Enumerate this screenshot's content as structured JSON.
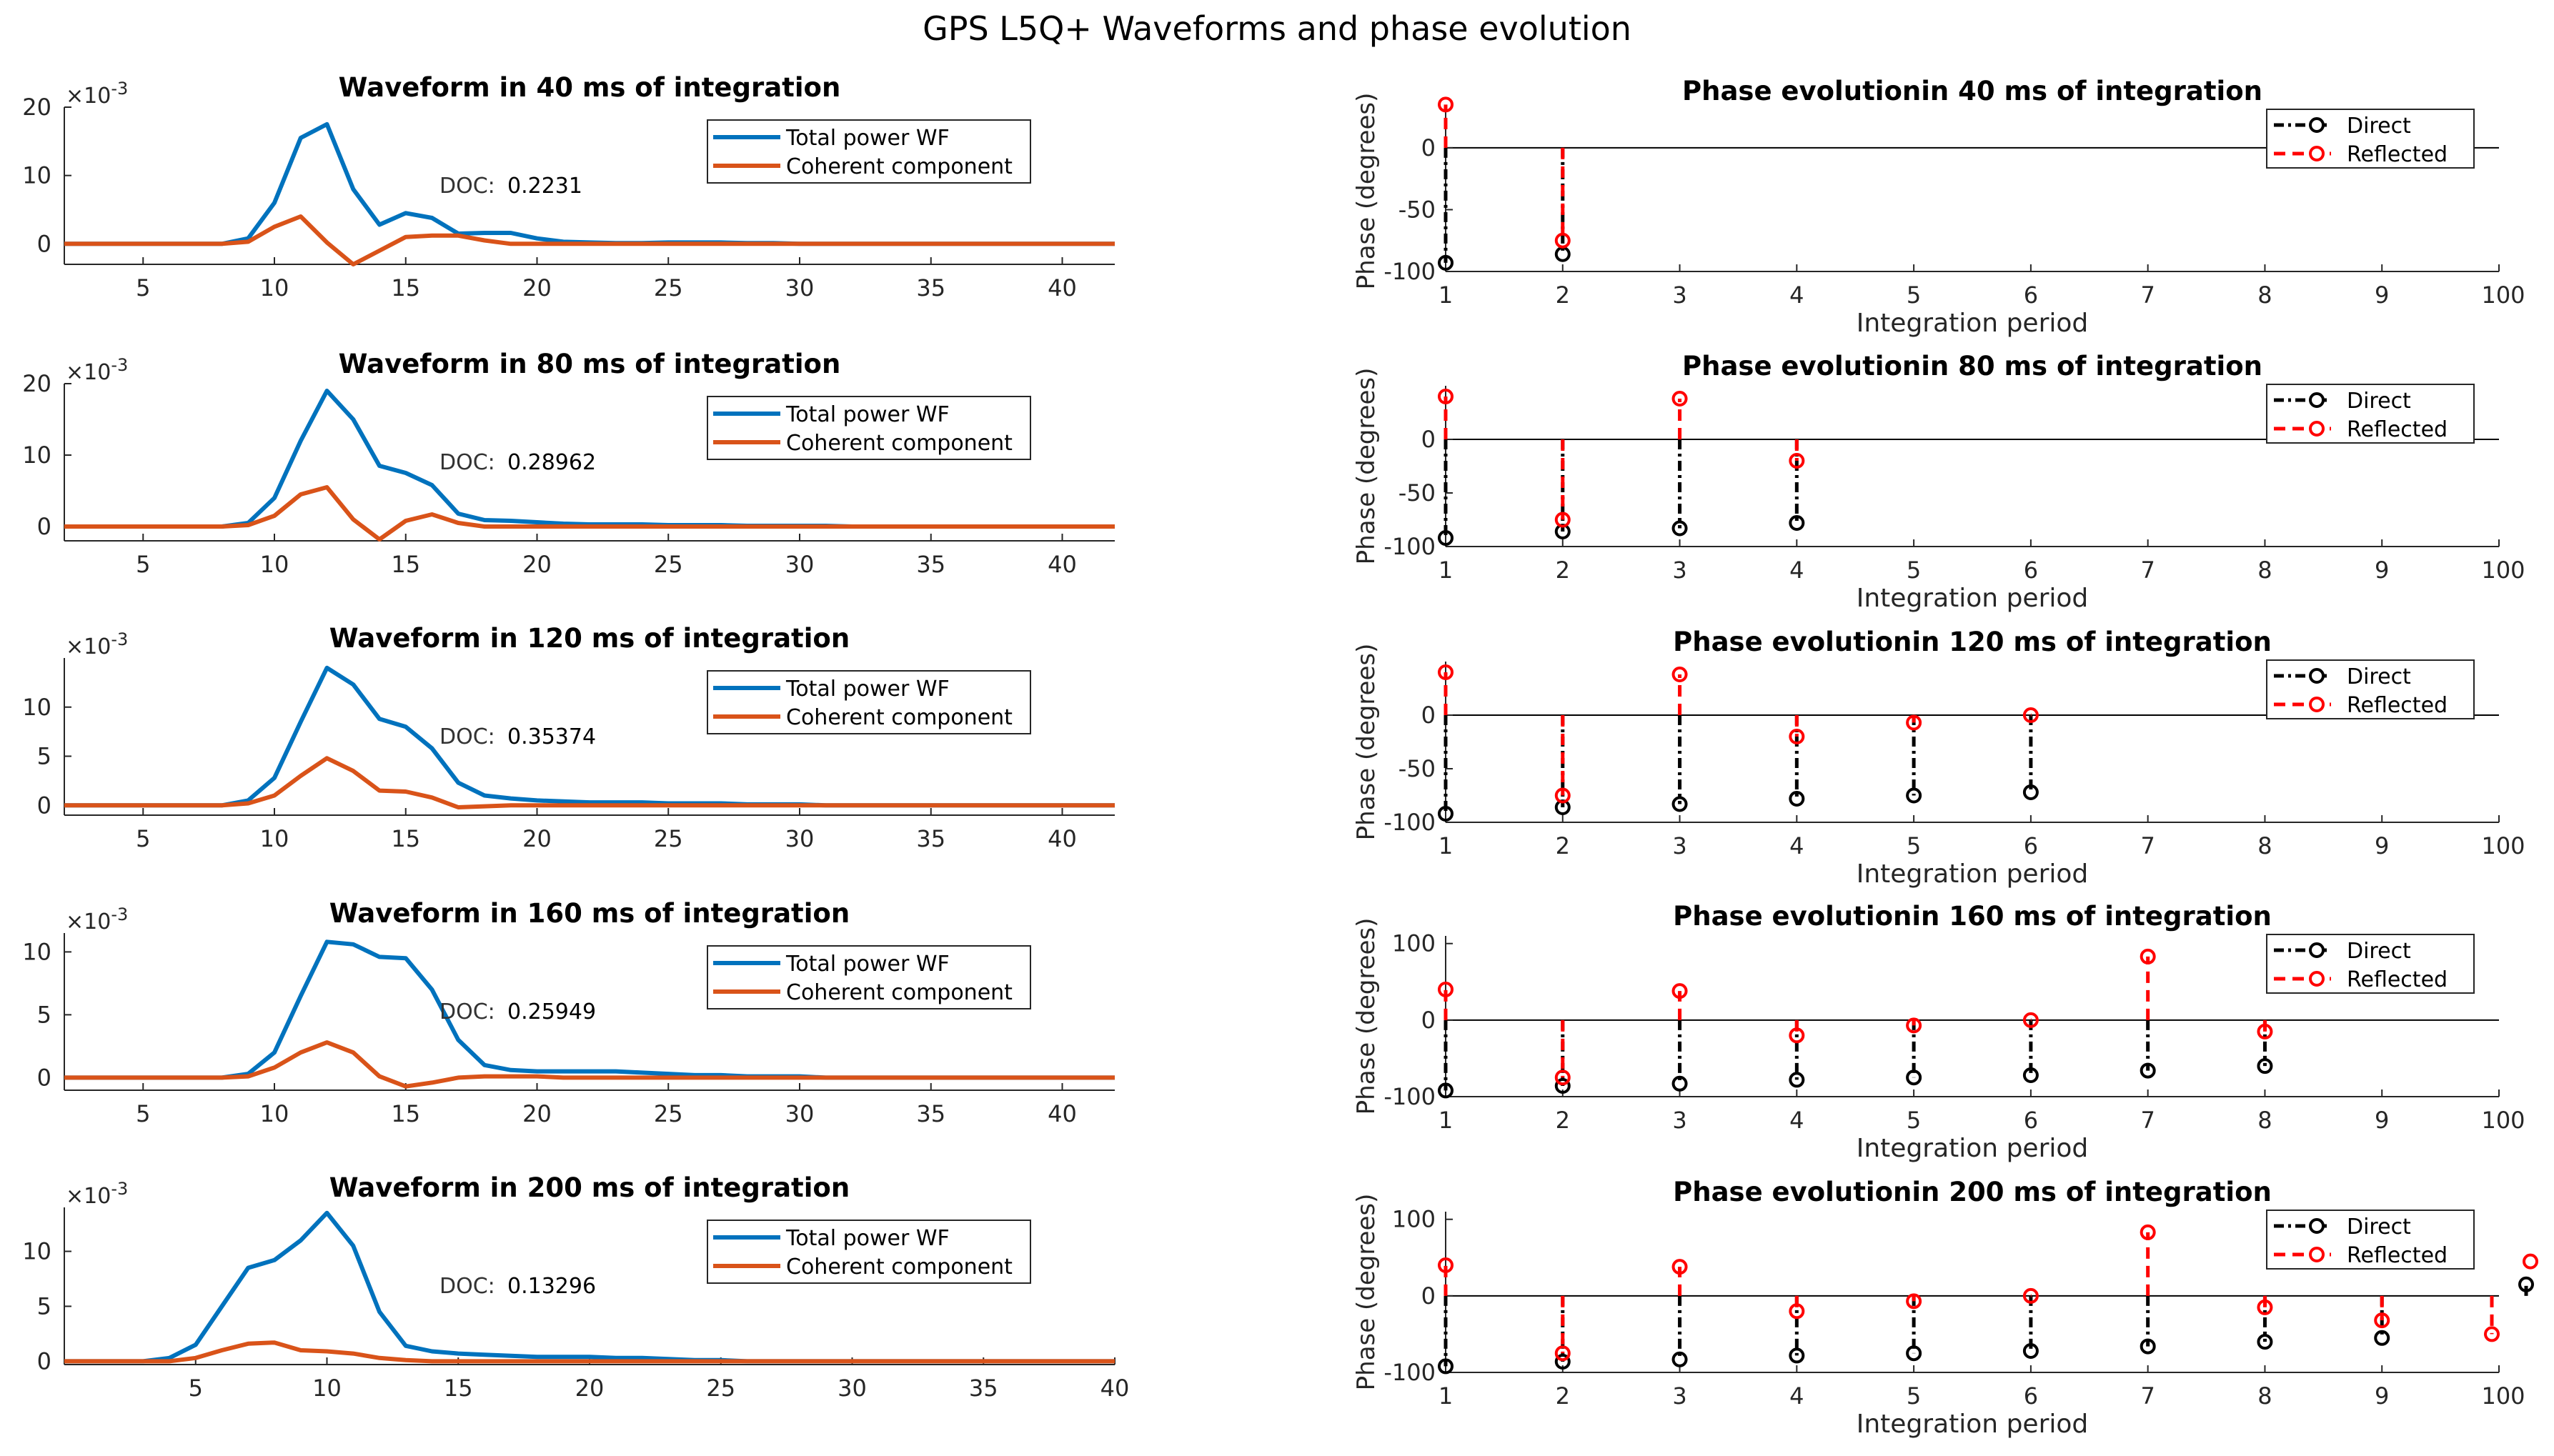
{
  "figure_title": "GPS L5Q+ Waveforms and phase evolution",
  "colors": {
    "total": "#0072BD",
    "coherent": "#D95319",
    "direct": "#000000",
    "reflected": "#FF0000",
    "axis": "#262626"
  },
  "chart_data": [
    {
      "type": "line",
      "panel": "waveform",
      "title": "Waveform in 40 ms of integration",
      "exponent_label": "×10^-3",
      "exp_base": "×10",
      "exp_power": "-3",
      "xlim": [
        2,
        42
      ],
      "ylim": [
        -3,
        20
      ],
      "xticks": [
        5,
        10,
        15,
        20,
        25,
        30,
        35,
        40
      ],
      "yticks": [
        0,
        10,
        20
      ],
      "doc_label": "DOC:",
      "doc_value": "0.2231",
      "legend": [
        "Total power WF",
        "Coherent component"
      ],
      "x": [
        2,
        3,
        4,
        5,
        6,
        7,
        8,
        9,
        10,
        11,
        12,
        13,
        14,
        15,
        16,
        17,
        18,
        19,
        20,
        21,
        22,
        23,
        24,
        25,
        26,
        27,
        28,
        29,
        30,
        31,
        32,
        33,
        34,
        35,
        36,
        37,
        38,
        39,
        40,
        41,
        42
      ],
      "series": [
        {
          "name": "Total power WF",
          "values": [
            0,
            0,
            0,
            0,
            0,
            0,
            0,
            0.8,
            6,
            15.5,
            17.5,
            8,
            2.8,
            4.5,
            3.8,
            1.5,
            1.6,
            1.6,
            0.8,
            0.3,
            0.2,
            0.1,
            0.1,
            0.2,
            0.2,
            0.2,
            0.1,
            0.1,
            0,
            0,
            0,
            0,
            0,
            0,
            0,
            0,
            0,
            0,
            0,
            0,
            0
          ]
        },
        {
          "name": "Coherent component",
          "values": [
            0,
            0,
            0,
            0,
            0,
            0,
            0,
            0.3,
            2.5,
            4,
            0.2,
            -3,
            -1,
            1,
            1.2,
            1.2,
            0.5,
            0,
            0,
            0,
            0,
            0,
            0,
            0,
            0,
            0,
            0,
            0,
            0,
            0,
            0,
            0,
            0,
            0,
            0,
            0,
            0,
            0,
            0,
            0,
            0
          ]
        }
      ]
    },
    {
      "type": "line",
      "panel": "waveform",
      "title": "Waveform in 80 ms of integration",
      "exponent_label": "×10^-3",
      "exp_base": "×10",
      "exp_power": "-3",
      "xlim": [
        2,
        42
      ],
      "ylim": [
        -2,
        20
      ],
      "xticks": [
        5,
        10,
        15,
        20,
        25,
        30,
        35,
        40
      ],
      "yticks": [
        0,
        10,
        20
      ],
      "doc_label": "DOC:",
      "doc_value": "0.28962",
      "legend": [
        "Total power WF",
        "Coherent component"
      ],
      "x": [
        2,
        3,
        4,
        5,
        6,
        7,
        8,
        9,
        10,
        11,
        12,
        13,
        14,
        15,
        16,
        17,
        18,
        19,
        20,
        21,
        22,
        23,
        24,
        25,
        26,
        27,
        28,
        29,
        30,
        31,
        32,
        33,
        34,
        35,
        36,
        37,
        38,
        39,
        40,
        41,
        42
      ],
      "series": [
        {
          "name": "Total power WF",
          "values": [
            0,
            0,
            0,
            0,
            0,
            0,
            0,
            0.5,
            4,
            12,
            19,
            15,
            8.5,
            7.5,
            5.8,
            1.8,
            0.9,
            0.8,
            0.6,
            0.4,
            0.3,
            0.3,
            0.3,
            0.2,
            0.2,
            0.2,
            0.1,
            0.1,
            0.1,
            0.1,
            0,
            0,
            0,
            0,
            0,
            0,
            0,
            0,
            0,
            0,
            0
          ]
        },
        {
          "name": "Coherent component",
          "values": [
            0,
            0,
            0,
            0,
            0,
            0,
            0,
            0.2,
            1.5,
            4.5,
            5.5,
            1,
            -1.8,
            0.8,
            1.7,
            0.5,
            0,
            0,
            0,
            0,
            0,
            0,
            0,
            0,
            0,
            0,
            0,
            0,
            0,
            0,
            0,
            0,
            0,
            0,
            0,
            0,
            0,
            0,
            0,
            0,
            0
          ]
        }
      ]
    },
    {
      "type": "line",
      "panel": "waveform",
      "title": "Waveform in 120 ms of integration",
      "exponent_label": "×10^-3",
      "exp_base": "×10",
      "exp_power": "-3",
      "xlim": [
        2,
        42
      ],
      "ylim": [
        -1,
        15
      ],
      "xticks": [
        5,
        10,
        15,
        20,
        25,
        30,
        35,
        40
      ],
      "yticks": [
        0,
        5,
        10
      ],
      "doc_label": "DOC:",
      "doc_value": "0.35374",
      "legend": [
        "Total power WF",
        "Coherent component"
      ],
      "x": [
        2,
        3,
        4,
        5,
        6,
        7,
        8,
        9,
        10,
        11,
        12,
        13,
        14,
        15,
        16,
        17,
        18,
        19,
        20,
        21,
        22,
        23,
        24,
        25,
        26,
        27,
        28,
        29,
        30,
        31,
        32,
        33,
        34,
        35,
        36,
        37,
        38,
        39,
        40,
        41,
        42
      ],
      "series": [
        {
          "name": "Total power WF",
          "values": [
            0,
            0,
            0,
            0,
            0,
            0,
            0,
            0.5,
            2.8,
            8.5,
            14,
            12.3,
            8.8,
            8,
            5.8,
            2.3,
            1,
            0.7,
            0.5,
            0.4,
            0.3,
            0.3,
            0.3,
            0.2,
            0.2,
            0.2,
            0.1,
            0.1,
            0.1,
            0,
            0,
            0,
            0,
            0,
            0,
            0,
            0,
            0,
            0,
            0,
            0
          ]
        },
        {
          "name": "Coherent component",
          "values": [
            0,
            0,
            0,
            0,
            0,
            0,
            0,
            0.2,
            1,
            3,
            4.8,
            3.5,
            1.5,
            1.4,
            0.8,
            -0.2,
            -0.1,
            0,
            0,
            0,
            0,
            0,
            0,
            0,
            0,
            0,
            0,
            0,
            0,
            0,
            0,
            0,
            0,
            0,
            0,
            0,
            0,
            0,
            0,
            0,
            0
          ]
        }
      ]
    },
    {
      "type": "line",
      "panel": "waveform",
      "title": "Waveform in 160 ms of integration",
      "exponent_label": "×10^-3",
      "exp_base": "×10",
      "exp_power": "-3",
      "xlim": [
        2,
        42
      ],
      "ylim": [
        -1,
        11.5
      ],
      "xticks": [
        5,
        10,
        15,
        20,
        25,
        30,
        35,
        40
      ],
      "yticks": [
        0,
        5,
        10
      ],
      "doc_label": "DOC:",
      "doc_value": "0.25949",
      "legend": [
        "Total power WF",
        "Coherent component"
      ],
      "x": [
        2,
        3,
        4,
        5,
        6,
        7,
        8,
        9,
        10,
        11,
        12,
        13,
        14,
        15,
        16,
        17,
        18,
        19,
        20,
        21,
        22,
        23,
        24,
        25,
        26,
        27,
        28,
        29,
        30,
        31,
        32,
        33,
        34,
        35,
        36,
        37,
        38,
        39,
        40,
        41,
        42
      ],
      "series": [
        {
          "name": "Total power WF",
          "values": [
            0,
            0,
            0,
            0,
            0,
            0,
            0,
            0.3,
            2,
            6.5,
            10.8,
            10.6,
            9.6,
            9.5,
            7,
            3,
            1,
            0.6,
            0.5,
            0.5,
            0.5,
            0.5,
            0.4,
            0.3,
            0.2,
            0.2,
            0.1,
            0.1,
            0.1,
            0,
            0,
            0,
            0,
            0,
            0,
            0,
            0,
            0,
            0,
            0,
            0
          ]
        },
        {
          "name": "Coherent component",
          "values": [
            0,
            0,
            0,
            0,
            0,
            0,
            0,
            0.1,
            0.8,
            2,
            2.8,
            2,
            0.1,
            -0.7,
            -0.4,
            0,
            0.1,
            0.1,
            0.1,
            0,
            0,
            0,
            0,
            0,
            0,
            0,
            0,
            0,
            0,
            0,
            0,
            0,
            0,
            0,
            0,
            0,
            0,
            0,
            0,
            0,
            0
          ]
        }
      ]
    },
    {
      "type": "line",
      "panel": "waveform",
      "title": "Waveform in 200 ms of integration",
      "exponent_label": "×10^-3",
      "exp_base": "×10",
      "exp_power": "-3",
      "xlim": [
        0,
        40
      ],
      "ylim": [
        -0.3,
        14
      ],
      "xticks": [
        5,
        10,
        15,
        20,
        25,
        30,
        35,
        40
      ],
      "yticks": [
        0,
        5,
        10
      ],
      "doc_label": "DOC:",
      "doc_value": "0.13296",
      "legend": [
        "Total power WF",
        "Coherent component"
      ],
      "x": [
        0,
        1,
        2,
        3,
        4,
        5,
        6,
        7,
        8,
        9,
        10,
        11,
        12,
        13,
        14,
        15,
        16,
        17,
        18,
        19,
        20,
        21,
        22,
        23,
        24,
        25,
        26,
        27,
        28,
        29,
        30,
        31,
        32,
        33,
        34,
        35,
        36,
        37,
        38,
        39,
        40
      ],
      "series": [
        {
          "name": "Total power WF",
          "values": [
            0,
            0,
            0,
            0,
            0.3,
            1.5,
            5,
            8.5,
            9.2,
            11,
            13.5,
            10.5,
            4.5,
            1.4,
            0.9,
            0.7,
            0.6,
            0.5,
            0.4,
            0.4,
            0.4,
            0.3,
            0.3,
            0.2,
            0.1,
            0.1,
            0,
            0,
            0,
            0,
            0,
            0,
            0,
            0,
            0,
            0,
            0,
            0,
            0,
            0,
            0
          ]
        },
        {
          "name": "Coherent component",
          "values": [
            0,
            0,
            0,
            0,
            0,
            0.3,
            1,
            1.6,
            1.7,
            1,
            0.9,
            0.7,
            0.3,
            0.1,
            0,
            0,
            0,
            0,
            0,
            0,
            0,
            0,
            0,
            0,
            0,
            0,
            0,
            0,
            0,
            0,
            0,
            0,
            0,
            0,
            0,
            0,
            0,
            0,
            0,
            0,
            0
          ]
        }
      ]
    },
    {
      "type": "stem",
      "panel": "phase",
      "title": "Phase evolutionin 40 ms of integration",
      "xlabel": "Integration period",
      "ylabel": "Phase (degrees)",
      "xtick_labels": [
        "1",
        "2",
        "3",
        "4",
        "5",
        "6",
        "7",
        "8",
        "9",
        "100"
      ],
      "ylim": [
        -100,
        30
      ],
      "yticks": [
        0,
        -50,
        -100
      ],
      "legend": [
        "Direct",
        "Reflected"
      ],
      "direct": [
        -93,
        -86
      ],
      "reflected": [
        35,
        -75
      ]
    },
    {
      "type": "stem",
      "panel": "phase",
      "title": "Phase evolutionin 80 ms of integration",
      "xlabel": "Integration period",
      "ylabel": "Phase (degrees)",
      "xtick_labels": [
        "1",
        "2",
        "3",
        "4",
        "5",
        "6",
        "7",
        "8",
        "9",
        "100"
      ],
      "ylim": [
        -100,
        50
      ],
      "yticks": [
        0,
        -50,
        -100
      ],
      "legend": [
        "Direct",
        "Reflected"
      ],
      "direct": [
        -92,
        -86,
        -83,
        -78
      ],
      "reflected": [
        40,
        -75,
        38,
        -20
      ]
    },
    {
      "type": "stem",
      "panel": "phase",
      "title": "Phase evolutionin 120 ms of integration",
      "xlabel": "Integration period",
      "ylabel": "Phase (degrees)",
      "xtick_labels": [
        "1",
        "2",
        "3",
        "4",
        "5",
        "6",
        "7",
        "8",
        "9",
        "100"
      ],
      "ylim": [
        -100,
        50
      ],
      "yticks": [
        0,
        -50,
        -100
      ],
      "legend": [
        "Direct",
        "Reflected"
      ],
      "direct": [
        -92,
        -86,
        -83,
        -78,
        -75,
        -72
      ],
      "reflected": [
        40,
        -75,
        38,
        -20,
        -7,
        0
      ]
    },
    {
      "type": "stem",
      "panel": "phase",
      "title": "Phase evolutionin 160 ms of integration",
      "xlabel": "Integration period",
      "ylabel": "Phase (degrees)",
      "xtick_labels": [
        "1",
        "2",
        "3",
        "4",
        "5",
        "6",
        "7",
        "8",
        "9",
        "100"
      ],
      "ylim": [
        -100,
        110
      ],
      "yticks": [
        100,
        0,
        -100
      ],
      "legend": [
        "Direct",
        "Reflected"
      ],
      "direct": [
        -92,
        -86,
        -83,
        -78,
        -75,
        -72,
        -66,
        -60
      ],
      "reflected": [
        40,
        -75,
        38,
        -20,
        -7,
        0,
        83,
        -15
      ]
    },
    {
      "type": "stem",
      "panel": "phase",
      "title": "Phase evolutionin 200 ms of integration",
      "xlabel": "Integration period",
      "ylabel": "Phase (degrees)",
      "xtick_labels": [
        "1",
        "2",
        "3",
        "4",
        "5",
        "6",
        "7",
        "8",
        "9",
        "100"
      ],
      "ylim": [
        -100,
        110
      ],
      "yticks": [
        100,
        0,
        -100
      ],
      "legend": [
        "Direct",
        "Reflected"
      ],
      "direct": [
        -92,
        -86,
        -83,
        -78,
        -75,
        -72,
        -66,
        -60,
        -55,
        15
      ],
      "reflected": [
        40,
        -75,
        38,
        -20,
        -7,
        0,
        83,
        -15,
        -32,
        -50
      ],
      "extra_direct": 15,
      "extra_reflected": 45
    }
  ]
}
